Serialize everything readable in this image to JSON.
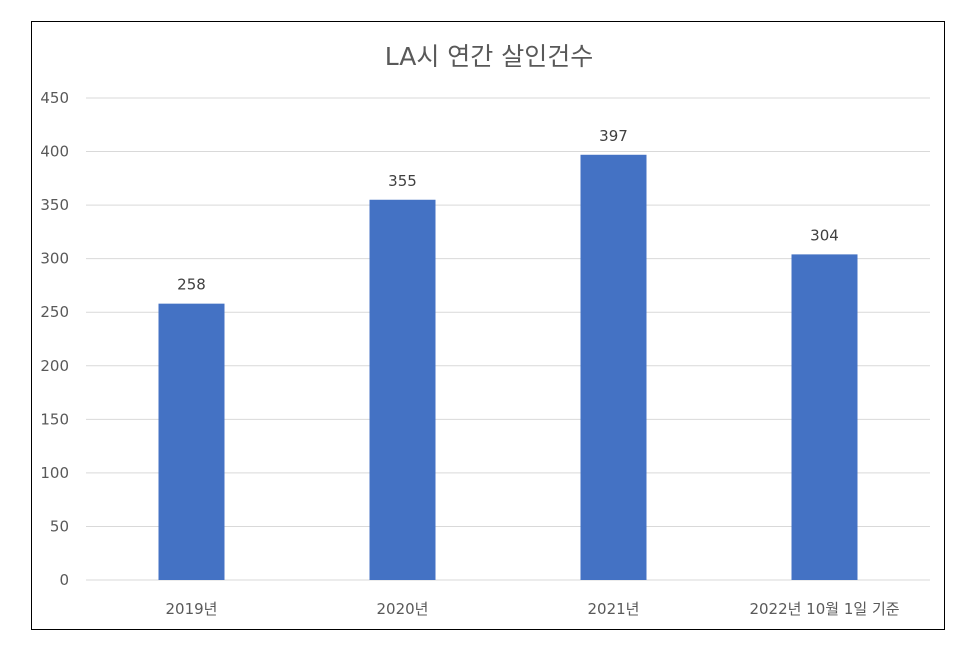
{
  "chart_data": {
    "type": "bar",
    "title": "LA시 연간 살인건수",
    "categories": [
      "2019년",
      "2020년",
      "2021년",
      "2022년 10월 1일 기준"
    ],
    "values": [
      258,
      355,
      397,
      304
    ],
    "data_labels": [
      "258",
      "355",
      "397",
      "304"
    ],
    "y_ticks": [
      "0",
      "50",
      "100",
      "150",
      "200",
      "250",
      "300",
      "350",
      "400",
      "450"
    ],
    "ylim": [
      0,
      450
    ],
    "xlabel": "",
    "ylabel": "",
    "grid": true,
    "legend": "none",
    "bar_color": "#4472c4"
  }
}
